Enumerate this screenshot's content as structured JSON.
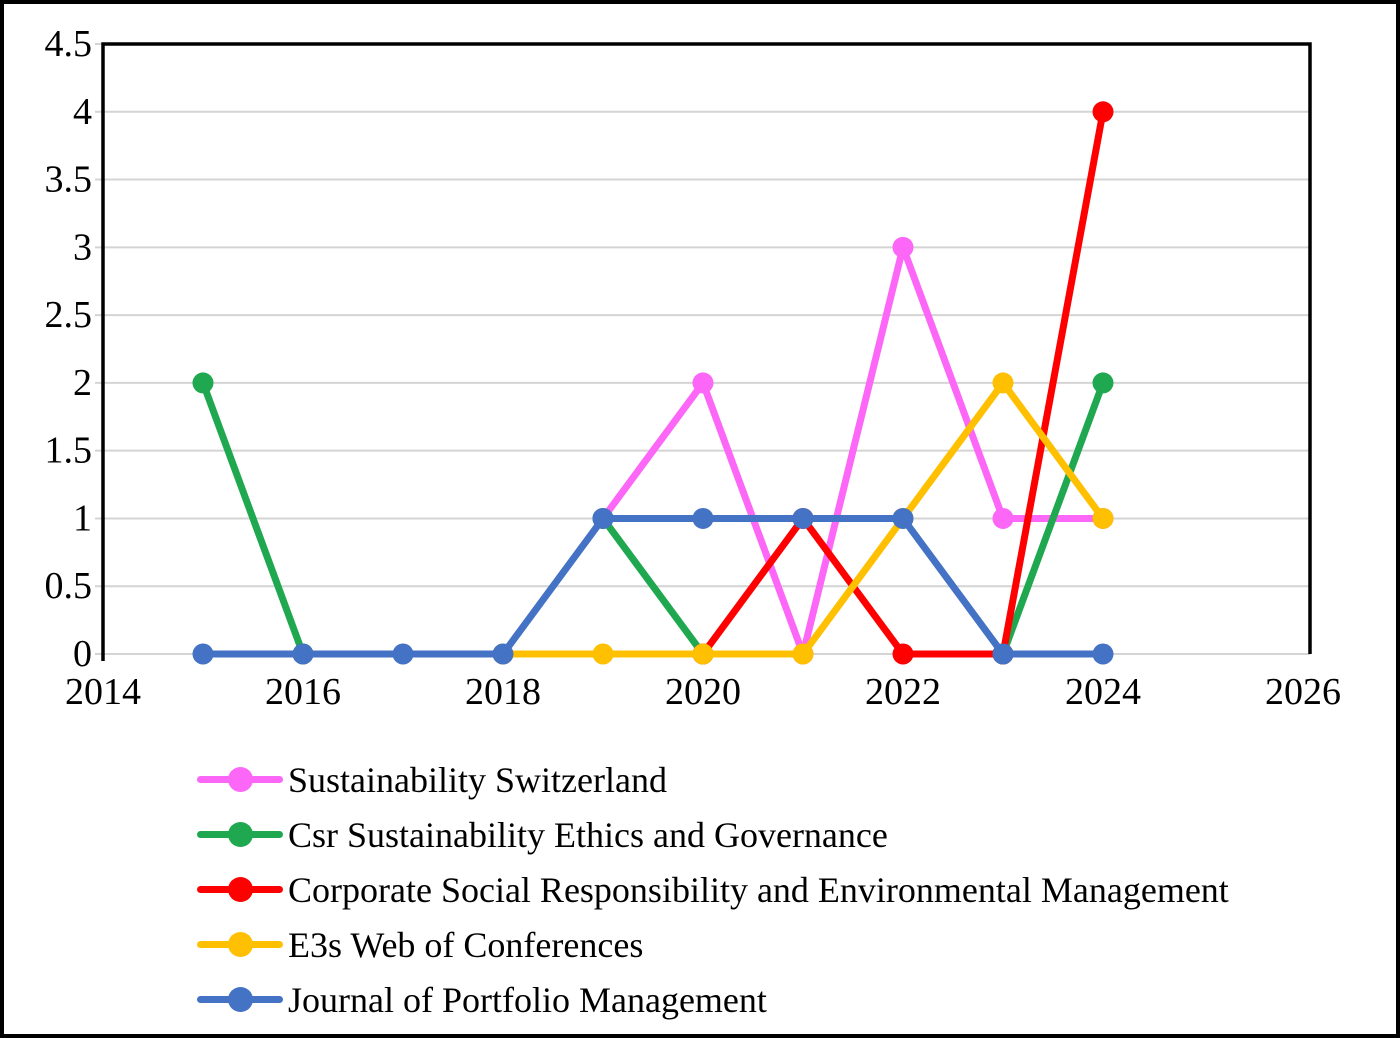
{
  "chart_data": {
    "type": "line",
    "title": "",
    "xlabel": "",
    "ylabel": "",
    "xlim": [
      2014,
      2026
    ],
    "ylim": [
      0,
      4.5
    ],
    "x_ticks": [
      "2014",
      "2016",
      "2018",
      "2020",
      "2022",
      "2024",
      "2026"
    ],
    "y_ticks": [
      "4.5",
      "4",
      "3.5",
      "3",
      "2.5",
      "2",
      "1.5",
      "1",
      "0.5",
      "0"
    ],
    "grid": "horizontal",
    "grid_color": "#d4d4d4",
    "axis_color": "#000000",
    "legend_position": "bottom-left",
    "x": [
      2015,
      2016,
      2017,
      2018,
      2019,
      2020,
      2021,
      2022,
      2023,
      2024
    ],
    "series": [
      {
        "name": "Sustainability Switzerland",
        "color": "#fc67f7",
        "values": [
          null,
          null,
          null,
          null,
          1,
          2,
          0,
          3,
          1,
          1
        ]
      },
      {
        "name": "Csr Sustainability Ethics and Governance",
        "color": "#1fa84f",
        "values": [
          2,
          0,
          null,
          null,
          1,
          0,
          null,
          null,
          0,
          2
        ]
      },
      {
        "name": "Corporate Social Responsibility and Environmental Management",
        "color": "#fe0000",
        "values": [
          null,
          null,
          null,
          null,
          null,
          0,
          1,
          0,
          0,
          4
        ]
      },
      {
        "name": "E3s Web of Conferences",
        "color": "#ffc001",
        "values": [
          null,
          null,
          null,
          0,
          0,
          0,
          0,
          1,
          2,
          1
        ]
      },
      {
        "name": "Journal of Portfolio Management",
        "color": "#4472c4",
        "values": [
          0,
          0,
          0,
          0,
          1,
          1,
          1,
          1,
          0,
          0
        ]
      }
    ]
  }
}
